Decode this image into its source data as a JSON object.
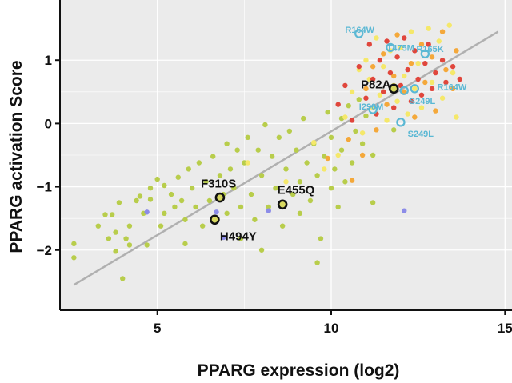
{
  "chart_data": {
    "type": "scatter",
    "title": "",
    "xlabel": "PPARG expression (log2)",
    "ylabel": "PPARG activation Score",
    "xlim": [
      2.2,
      15.2
    ],
    "ylim": [
      -2.95,
      1.95
    ],
    "xticks": [
      5,
      10,
      15
    ],
    "yticks": [
      1,
      0,
      -1,
      -2
    ],
    "ytick_labels": [
      "1",
      "0",
      "−1",
      "−2"
    ],
    "grid": true,
    "legend": "none",
    "colors": {
      "panel": "#ebebeb",
      "grid": "#ffffff",
      "green": "#b8cd4b",
      "yellow": "#f5e86a",
      "orange": "#f4a83a",
      "red": "#e0463c",
      "purple": "#8c8ce8",
      "fit_line": "#b0b0b0",
      "label_blue": "#5bb8d4"
    },
    "fit_line": {
      "x": [
        2.6,
        14.8
      ],
      "y": [
        -2.55,
        1.45
      ]
    },
    "series": [
      {
        "color_key": "green",
        "points": [
          [
            2.6,
            -1.9
          ],
          [
            2.6,
            -2.12
          ],
          [
            3.3,
            -1.62
          ],
          [
            3.5,
            -1.44
          ],
          [
            3.6,
            -1.82
          ],
          [
            3.7,
            -1.44
          ],
          [
            3.8,
            -1.72
          ],
          [
            3.8,
            -2.02
          ],
          [
            3.9,
            -1.25
          ],
          [
            4.0,
            -2.45
          ],
          [
            4.1,
            -1.82
          ],
          [
            4.2,
            -1.62
          ],
          [
            4.2,
            -1.92
          ],
          [
            4.4,
            -1.22
          ],
          [
            4.5,
            -1.15
          ],
          [
            4.6,
            -1.42
          ],
          [
            4.7,
            -1.92
          ],
          [
            4.8,
            -1.02
          ],
          [
            4.8,
            -1.2
          ],
          [
            5.0,
            -0.88
          ],
          [
            5.1,
            -1.62
          ],
          [
            5.2,
            -0.98
          ],
          [
            5.2,
            -1.42
          ],
          [
            5.4,
            -1.12
          ],
          [
            5.5,
            -1.32
          ],
          [
            5.6,
            -0.85
          ],
          [
            5.7,
            -1.22
          ],
          [
            5.8,
            -1.52
          ],
          [
            5.8,
            -1.9
          ],
          [
            5.9,
            -0.72
          ],
          [
            6.0,
            -1.02
          ],
          [
            6.1,
            -1.32
          ],
          [
            6.2,
            -0.62
          ],
          [
            6.3,
            -1.62
          ],
          [
            6.4,
            -0.92
          ],
          [
            6.5,
            -1.22
          ],
          [
            6.6,
            -1.52
          ],
          [
            6.6,
            -0.52
          ],
          [
            6.8,
            -0.82
          ],
          [
            6.9,
            -1.12
          ],
          [
            7.0,
            -0.32
          ],
          [
            7.0,
            -1.42
          ],
          [
            7.1,
            -0.72
          ],
          [
            7.2,
            -1.02
          ],
          [
            7.3,
            -0.42
          ],
          [
            7.4,
            -1.32
          ],
          [
            7.4,
            -1.82
          ],
          [
            7.5,
            -0.62
          ],
          [
            7.6,
            -0.22
          ],
          [
            7.7,
            -1.12
          ],
          [
            7.8,
            -1.52
          ],
          [
            7.9,
            -0.42
          ],
          [
            8.0,
            -0.82
          ],
          [
            8.0,
            -2.0
          ],
          [
            8.1,
            -0.02
          ],
          [
            8.2,
            -1.32
          ],
          [
            8.3,
            -0.52
          ],
          [
            8.4,
            -1.02
          ],
          [
            8.5,
            -0.22
          ],
          [
            8.6,
            -1.62
          ],
          [
            8.7,
            -0.72
          ],
          [
            8.8,
            -0.12
          ],
          [
            8.9,
            -1.12
          ],
          [
            9.0,
            -0.42
          ],
          [
            9.1,
            -0.92
          ],
          [
            9.1,
            -1.42
          ],
          [
            9.2,
            0.08
          ],
          [
            9.3,
            -0.62
          ],
          [
            9.4,
            -1.22
          ],
          [
            9.5,
            -0.32
          ],
          [
            9.6,
            -2.2
          ],
          [
            9.6,
            -0.82
          ],
          [
            9.7,
            -1.82
          ],
          [
            9.8,
            -0.52
          ],
          [
            9.9,
            0.18
          ],
          [
            10.0,
            -1.02
          ],
          [
            10.0,
            -0.22
          ],
          [
            10.1,
            -0.72
          ],
          [
            10.2,
            -1.32
          ],
          [
            10.3,
            0.08
          ],
          [
            10.3,
            -0.42
          ],
          [
            10.4,
            -0.92
          ],
          [
            10.5,
            0.28
          ],
          [
            10.6,
            -0.62
          ],
          [
            10.7,
            -0.12
          ],
          [
            10.8,
            0.38
          ],
          [
            10.9,
            -0.32
          ],
          [
            11.0,
            0.12
          ],
          [
            11.2,
            -1.25
          ],
          [
            11.2,
            -0.5
          ],
          [
            11.5,
            0.5
          ],
          [
            11.8,
            -0.1
          ]
        ]
      },
      {
        "color_key": "yellow",
        "points": [
          [
            7.6,
            -0.62
          ],
          [
            8.7,
            -0.92
          ],
          [
            9.5,
            -0.3
          ],
          [
            9.8,
            -0.72
          ],
          [
            10.2,
            -0.5
          ],
          [
            10.4,
            0.1
          ],
          [
            10.6,
            0.5
          ],
          [
            10.8,
            0.85
          ],
          [
            10.9,
            -0.15
          ],
          [
            11.0,
            1.0
          ],
          [
            11.1,
            0.7
          ],
          [
            11.2,
            0.25
          ],
          [
            11.3,
            1.35
          ],
          [
            11.4,
            0.45
          ],
          [
            11.5,
            0.9
          ],
          [
            11.6,
            0.05
          ],
          [
            11.7,
            1.15
          ],
          [
            11.8,
            0.6
          ],
          [
            11.9,
            0.35
          ],
          [
            12.0,
            1.2
          ],
          [
            12.1,
            0.75
          ],
          [
            12.2,
            0.15
          ],
          [
            12.3,
            1.45
          ],
          [
            12.4,
            0.55
          ],
          [
            12.5,
            0.95
          ],
          [
            12.6,
            0.25
          ],
          [
            12.8,
            1.5
          ],
          [
            12.9,
            0.65
          ],
          [
            13.1,
            1.3
          ],
          [
            13.2,
            0.4
          ],
          [
            13.4,
            1.55
          ],
          [
            13.5,
            0.8
          ],
          [
            13.6,
            0.1
          ]
        ]
      },
      {
        "color_key": "orange",
        "points": [
          [
            9.9,
            -0.55
          ],
          [
            10.5,
            -0.25
          ],
          [
            10.6,
            -0.9
          ],
          [
            10.9,
            -0.5
          ],
          [
            11.0,
            0.55
          ],
          [
            11.2,
            0.9
          ],
          [
            11.3,
            -0.1
          ],
          [
            11.5,
            1.1
          ],
          [
            11.6,
            0.3
          ],
          [
            11.8,
            0.75
          ],
          [
            11.9,
            1.4
          ],
          [
            12.1,
            0.5
          ],
          [
            12.3,
            0.95
          ],
          [
            12.4,
            0.1
          ],
          [
            12.6,
            1.25
          ],
          [
            12.7,
            0.65
          ],
          [
            12.9,
            1.05
          ],
          [
            13.0,
            0.2
          ],
          [
            13.2,
            1.45
          ],
          [
            13.3,
            0.85
          ],
          [
            13.5,
            0.55
          ],
          [
            13.6,
            1.15
          ]
        ]
      },
      {
        "color_key": "red",
        "points": [
          [
            10.2,
            0.3
          ],
          [
            10.4,
            0.6
          ],
          [
            10.6,
            0.05
          ],
          [
            10.8,
            0.9
          ],
          [
            11.0,
            0.4
          ],
          [
            11.1,
            1.25
          ],
          [
            11.2,
            0.7
          ],
          [
            11.3,
            0.15
          ],
          [
            11.4,
            1.0
          ],
          [
            11.5,
            0.5
          ],
          [
            11.6,
            1.3
          ],
          [
            11.7,
            0.8
          ],
          [
            11.8,
            0.25
          ],
          [
            11.9,
            1.05
          ],
          [
            12.0,
            0.6
          ],
          [
            12.1,
            1.35
          ],
          [
            12.2,
            0.85
          ],
          [
            12.3,
            0.35
          ],
          [
            12.4,
            1.15
          ],
          [
            12.5,
            0.7
          ],
          [
            12.6,
            0.45
          ],
          [
            12.7,
            0.95
          ],
          [
            12.8,
            1.25
          ],
          [
            12.9,
            0.55
          ],
          [
            13.0,
            0.8
          ],
          [
            13.2,
            1.0
          ],
          [
            13.3,
            0.65
          ],
          [
            13.5,
            0.9
          ],
          [
            13.7,
            0.7
          ]
        ]
      },
      {
        "color_key": "purple",
        "points": [
          [
            4.7,
            -1.4
          ],
          [
            6.7,
            -1.4
          ],
          [
            6.9,
            -1.8
          ],
          [
            8.2,
            -1.38
          ],
          [
            12.1,
            -1.38
          ]
        ]
      }
    ],
    "annotations_black": [
      {
        "label": "P82A",
        "x": 11.8,
        "y": 0.55,
        "tx": 10.85,
        "ty": 0.62
      },
      {
        "label": "F310S",
        "x": 6.8,
        "y": -1.17,
        "tx": 6.25,
        "ty": -0.95
      },
      {
        "label": "E455Q",
        "x": 8.6,
        "y": -1.28,
        "tx": 8.45,
        "ty": -1.05
      },
      {
        "label": "H494Y",
        "x": 6.65,
        "y": -1.52,
        "tx": 6.8,
        "ty": -1.78
      }
    ],
    "annotations_blue": [
      {
        "label": "R164W",
        "x": 10.8,
        "y": 1.42,
        "tx": 10.4,
        "ty": 1.48
      },
      {
        "label": "T475M",
        "x": 11.7,
        "y": 1.2,
        "tx": 11.6,
        "ty": 1.2
      },
      {
        "label": "R165K",
        "x": 12.7,
        "y": 1.1,
        "tx": 12.45,
        "ty": 1.18
      },
      {
        "label": "R164W",
        "x": 12.4,
        "y": 0.55,
        "tx": 13.05,
        "ty": 0.58
      },
      {
        "label": "S249L",
        "x": 12.1,
        "y": 0.52,
        "tx": 12.25,
        "ty": 0.36
      },
      {
        "label": "I290M",
        "x": 11.2,
        "y": 0.22,
        "tx": 10.8,
        "ty": 0.27
      },
      {
        "label": "S249L",
        "x": 12.0,
        "y": 0.02,
        "tx": 12.2,
        "ty": -0.16
      }
    ]
  }
}
